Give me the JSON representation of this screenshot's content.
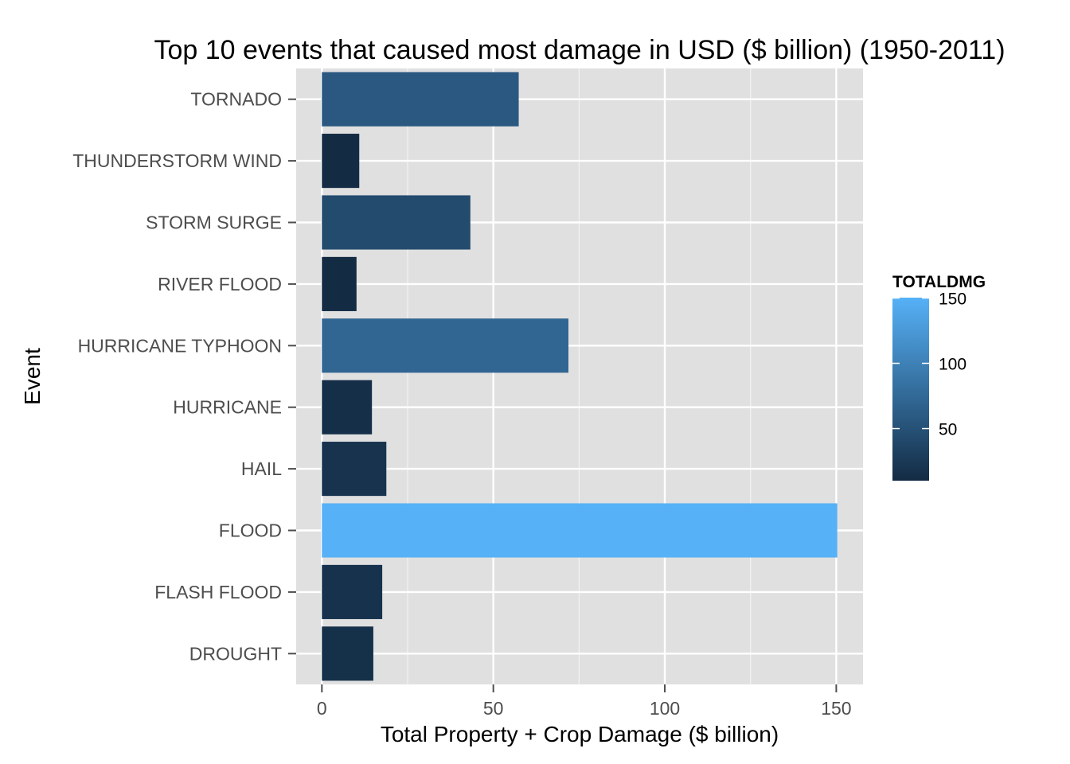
{
  "chart_data": {
    "type": "bar",
    "orientation": "horizontal",
    "title": "Top 10 events that caused most damage in USD ($ billion) (1950-2011)",
    "xlabel": "Total Property + Crop Damage ($ billion)",
    "ylabel": "Event",
    "categories": [
      "TORNADO",
      "THUNDERSTORM WIND",
      "STORM SURGE",
      "RIVER FLOOD",
      "HURRICANE TYPHOON",
      "HURRICANE",
      "HAIL",
      "FLOOD",
      "FLASH FLOOD",
      "DROUGHT"
    ],
    "values": [
      57.4,
      10.9,
      43.3,
      10.1,
      71.9,
      14.6,
      18.8,
      150.3,
      17.6,
      15.0
    ],
    "xlim": [
      -7.5,
      157.8
    ],
    "xticks": [
      0,
      50,
      100,
      150
    ],
    "xtick_labels": [
      "0",
      "50",
      "100",
      "150"
    ],
    "grid": true,
    "panel_background": "#e0e0e0",
    "grid_color": "#ffffff",
    "fill_scale": {
      "name": "TOTALDMG",
      "low_color": "#132b43",
      "high_color": "#56b1f7",
      "range": [
        10.1,
        150.3
      ],
      "ticks": [
        50,
        100,
        150
      ],
      "tick_labels": [
        "50",
        "100",
        "150"
      ]
    },
    "legend_position": "right"
  }
}
